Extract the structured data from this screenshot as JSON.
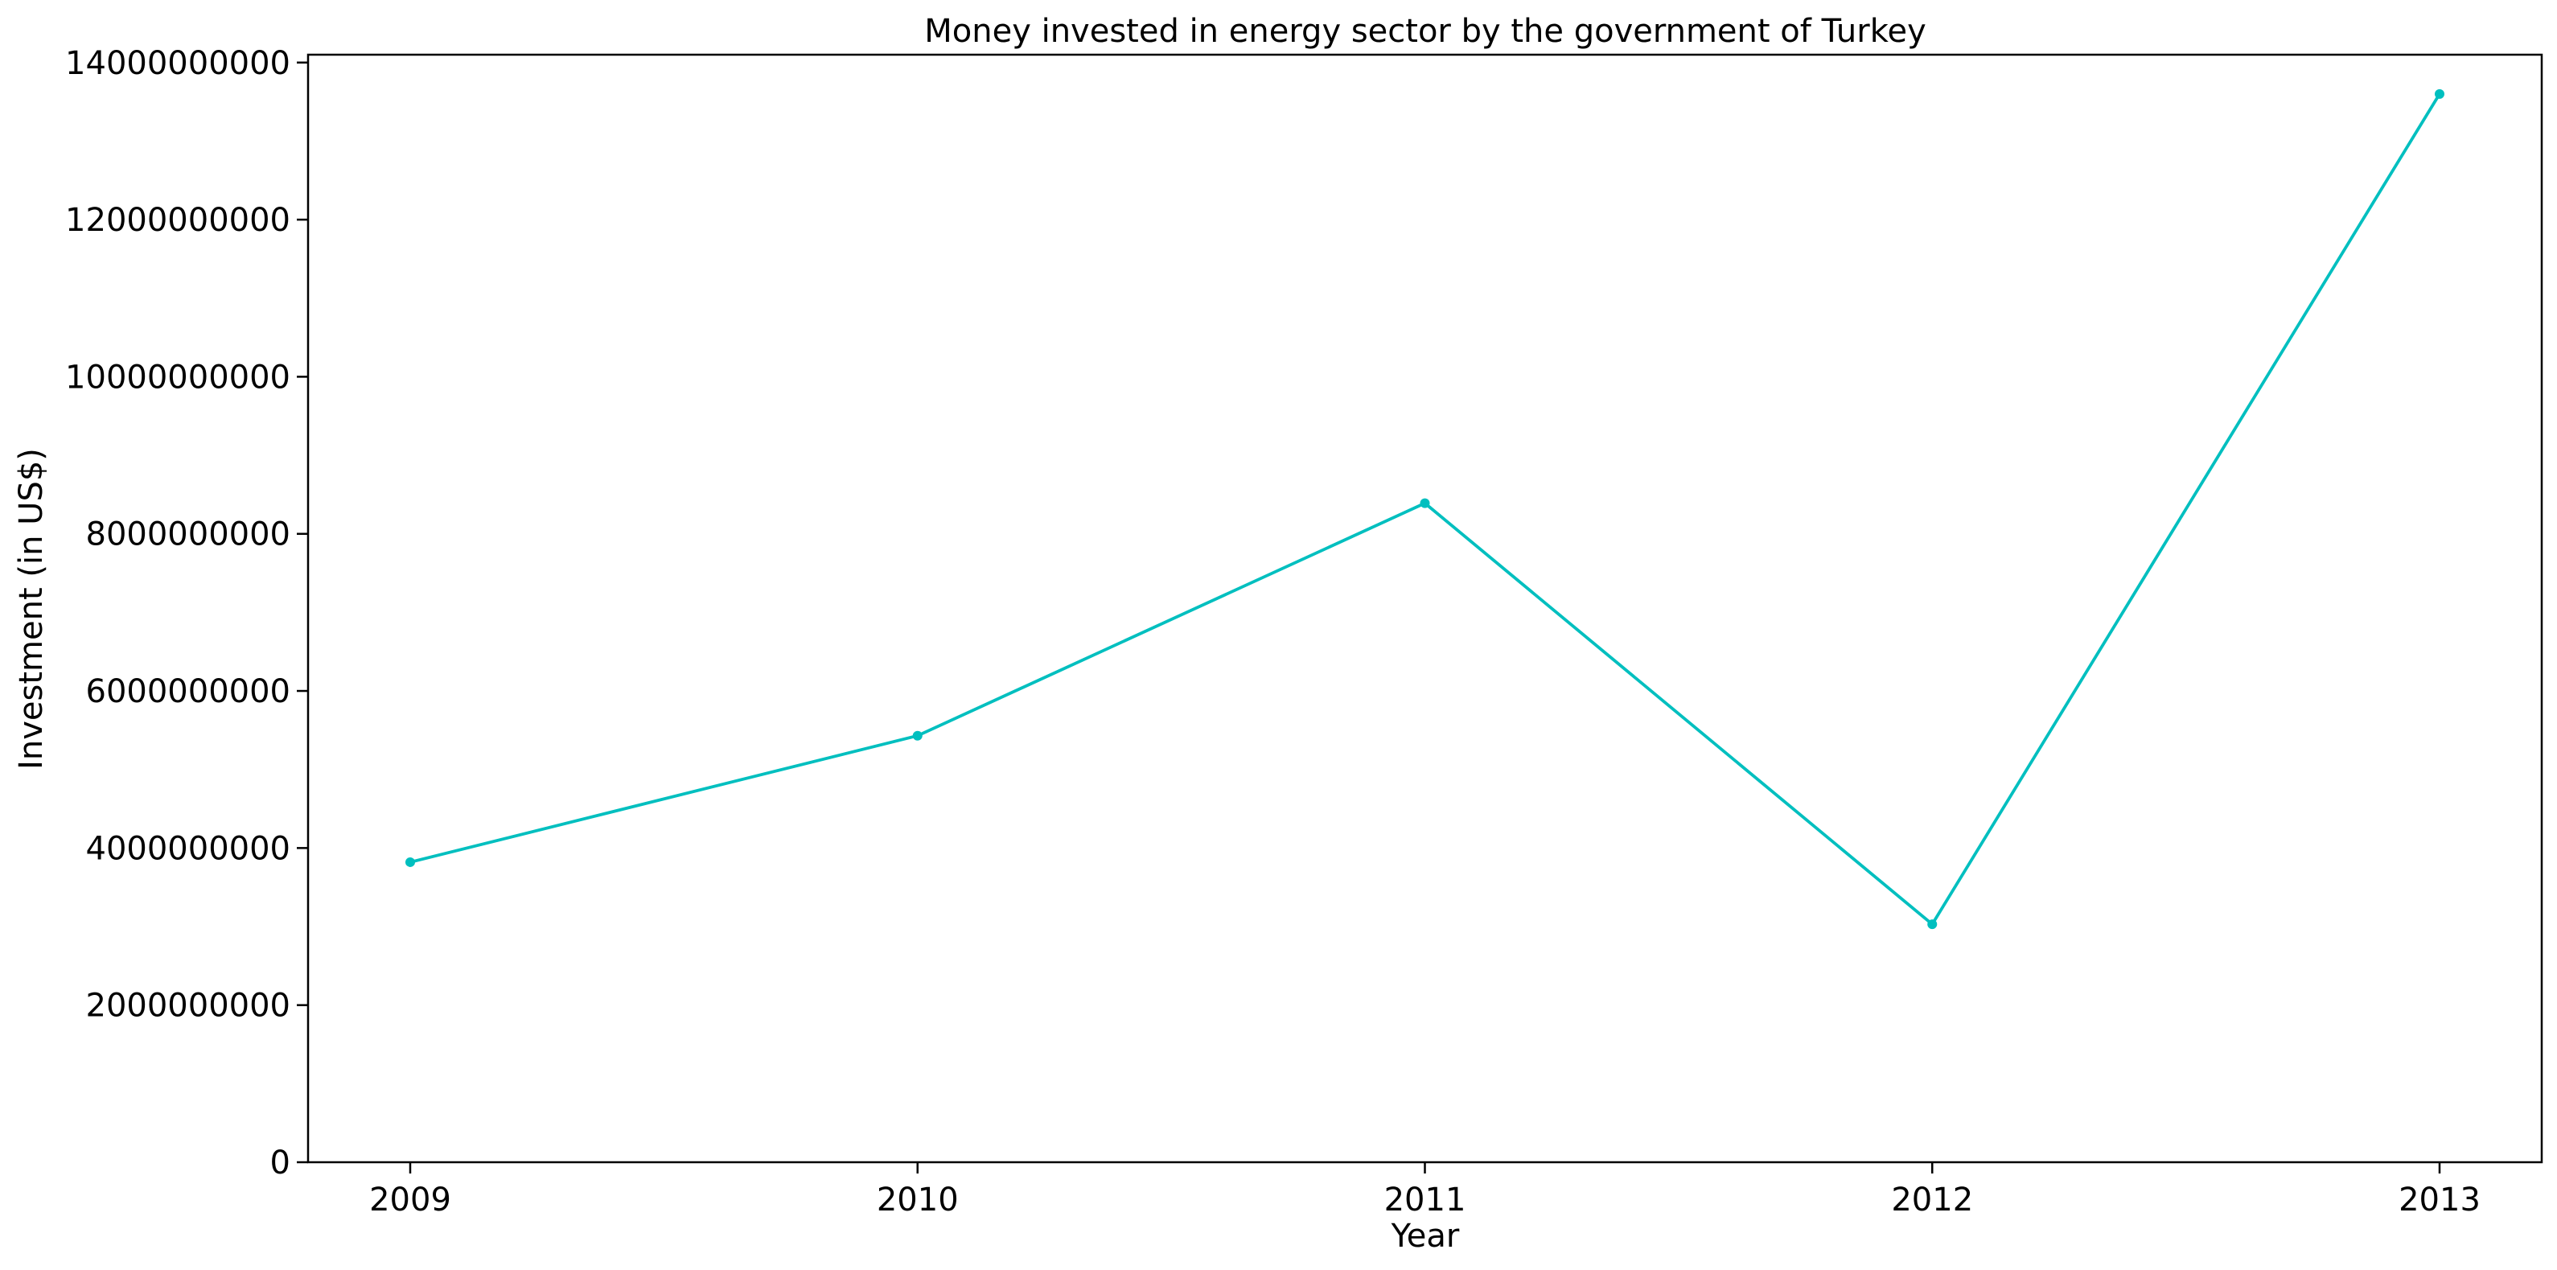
{
  "chart_data": {
    "type": "line",
    "title": "Money invested in energy sector by the government of Turkey",
    "xlabel": "Year",
    "ylabel": "Investment (in US$)",
    "categories": [
      "2009",
      "2010",
      "2011",
      "2012",
      "2013"
    ],
    "series": [
      {
        "values": [
          3820000000,
          5430000000,
          8390000000,
          3030000000,
          13600000000
        ],
        "color": "#00bfbf",
        "marker": "circle"
      }
    ],
    "y_ticks": [
      {
        "value": 0,
        "label": "0"
      },
      {
        "value": 2000000000,
        "label": "2000000000"
      },
      {
        "value": 4000000000,
        "label": "4000000000"
      },
      {
        "value": 6000000000,
        "label": "6000000000"
      },
      {
        "value": 8000000000,
        "label": "8000000000"
      },
      {
        "value": 10000000000,
        "label": "10000000000"
      },
      {
        "value": 12000000000,
        "label": "12000000000"
      },
      {
        "value": 14000000000,
        "label": "14000000000"
      }
    ],
    "ylim": [
      0,
      14100000000
    ],
    "grid": false,
    "legend": "none"
  }
}
